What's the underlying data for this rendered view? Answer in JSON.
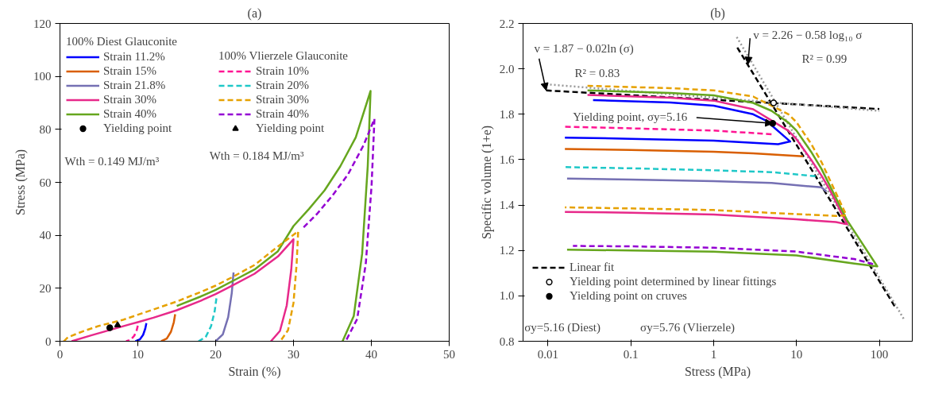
{
  "chart_data": [
    {
      "type": "line",
      "title": "(a)",
      "xlabel": "Strain (%)",
      "ylabel": "Stress (MPa)",
      "xlim": [
        0,
        50
      ],
      "ylim": [
        0,
        120
      ],
      "xticks": [
        0,
        10,
        20,
        30,
        40,
        50
      ],
      "yticks": [
        0,
        20,
        40,
        60,
        80,
        100,
        120
      ],
      "grid": false,
      "legend": "top left",
      "annotations": [
        "100% Diest Glauconite",
        "100% Vlierzele Glauconite",
        "Wth = 0.149 MJ/m³",
        "Wth = 0.184 MJ/m³"
      ],
      "series": [
        {
          "name": "Strain 11.2%",
          "color": "#0000ff",
          "line_style": "solid",
          "x": [
            11.1,
            10.96,
            10.68,
            10.26,
            9.7
          ],
          "values": [
            6.8,
            4.8,
            2.4,
            0.7,
            0
          ]
        },
        {
          "name": "Strain 15%",
          "color": "#d95f02",
          "line_style": "solid",
          "x": [
            14.8,
            14.62,
            14.26,
            13.72,
            13.0
          ],
          "values": [
            10.2,
            7.1,
            3.6,
            1.0,
            0
          ]
        },
        {
          "name": "Strain 21.8%",
          "color": "#7570b3",
          "line_style": "solid",
          "x": [
            22.3,
            22.07,
            21.61,
            20.92,
            20.0
          ],
          "values": [
            26.0,
            18.2,
            9.1,
            2.6,
            0
          ]
        },
        {
          "name": "Strain 30%",
          "color": "#e7298a",
          "line_style": "solid",
          "x": [
            1.5,
            4,
            9,
            10,
            12,
            15,
            18,
            20,
            22,
            25,
            28,
            30.0,
            29.71,
            29.13,
            28.26,
            27.1
          ],
          "values": [
            0,
            2.2,
            6.4,
            7.2,
            8.9,
            11.7,
            15.2,
            17.8,
            20.8,
            25.5,
            32,
            38.5,
            27.0,
            13.5,
            3.9,
            0
          ]
        },
        {
          "name": "Strain 40%",
          "color": "#66a61e",
          "line_style": "solid",
          "x": [
            15,
            18,
            20,
            23,
            25,
            28,
            30,
            32,
            34,
            36,
            38,
            39.9,
            39.54,
            38.82,
            37.74,
            36.3
          ],
          "values": [
            13.3,
            16.8,
            19.4,
            24.0,
            27.1,
            34,
            43.5,
            50,
            57,
            66,
            77,
            94.5,
            66.2,
            33.1,
            9.5,
            0
          ]
        },
        {
          "name": "Yielding point",
          "type": "scatter",
          "marker": "circle",
          "color": "#000000",
          "x": [
            6.4
          ],
          "values": [
            5.1
          ]
        },
        {
          "name": "Strain 10%",
          "color": "#ff1493",
          "line_style": "dashed",
          "x": [
            10.0,
            9.85,
            9.55,
            9.1,
            8.5
          ],
          "values": [
            5.9,
            4.1,
            2.1,
            0.6,
            0
          ]
        },
        {
          "name": "Strain 20%",
          "color": "#1fc8c8",
          "line_style": "dashed",
          "x": [
            20.1,
            19.87,
            19.41,
            18.72,
            17.8
          ],
          "values": [
            16.2,
            11.3,
            5.7,
            1.6,
            0
          ]
        },
        {
          "name": "Strain 30%",
          "color": "#e6a100",
          "line_style": "dashed",
          "x": [
            0.5,
            1,
            3,
            5,
            8,
            10,
            12,
            15,
            18,
            20,
            22,
            25,
            28,
            30.6,
            30.4,
            30.0,
            29.3,
            28.3
          ],
          "values": [
            0,
            1.5,
            3.8,
            5.8,
            8.0,
            10,
            12,
            15,
            18.5,
            21,
            24,
            28.8,
            35.8,
            41.5,
            29.1,
            14.5,
            4.2,
            0
          ]
        },
        {
          "name": "Strain 40%",
          "color": "#9400d3",
          "line_style": "dashed",
          "x": [
            31.3,
            33,
            35,
            37,
            39,
            40.4,
            40.03,
            39.29,
            38.18,
            36.7
          ],
          "values": [
            43.0,
            48,
            55,
            63,
            74,
            84,
            58.8,
            29.4,
            8.4,
            0
          ]
        },
        {
          "name": "Yielding point",
          "type": "scatter",
          "marker": "triangle",
          "color": "#000000",
          "x": [
            7.4
          ],
          "values": [
            6.1
          ]
        }
      ]
    },
    {
      "type": "line",
      "title": "(b)",
      "xlabel": "Stress (MPa)",
      "ylabel": "Specific volume (1+e)",
      "log": "x",
      "xlim": [
        0.005,
        250
      ],
      "ylim": [
        0.8,
        2.2
      ],
      "xticks": [
        0.01,
        0.1,
        1,
        10,
        100
      ],
      "yticks": [
        0.8,
        {
          "value": 1,
          "label": "1.0"
        },
        1.2,
        1.4,
        1.6,
        1.8,
        {
          "value": 2,
          "label": "2.0"
        },
        2.2
      ],
      "grid": false,
      "legend": "bottom left",
      "annotations": [
        {
          "text": "v = 1.87 − 0.02ln (σ)",
          "x": 0.0095,
          "y": 1.905
        },
        "R² = 0.83",
        {
          "text": "v = 2.26 − 0.58 log₁₀ σ",
          "x": 2.6,
          "y": 2.02
        },
        "R² = 0.99",
        {
          "text": "Yielding point, σy=5.16",
          "x": 5.16,
          "y": 1.76
        },
        "σy=5.16 (Diest)",
        "σy=5.76 (Vlierzele)"
      ],
      "series": [
        {
          "name": "Linear fit",
          "color": "#000000",
          "line_style": "dashed",
          "x": [
            0.0095,
            100,
            null,
            1.93,
            154
          ],
          "values": [
            1.905,
            1.823,
            null,
            2.094,
            0.953
          ]
        },
        {
          "color": "#999999",
          "line_style": "dotted",
          "x": [
            0.0095,
            100,
            null,
            1.9,
            200
          ],
          "values": [
            1.932,
            1.815,
            null,
            2.14,
            0.895
          ]
        },
        {
          "color": "#0000ff",
          "line_style": "solid",
          "x": [
            0.035,
            0.3,
            1,
            3,
            4.3,
            8.4,
            6,
            1,
            0.1,
            0.016
          ],
          "values": [
            1.862,
            1.852,
            1.838,
            1.8,
            1.772,
            1.68,
            1.668,
            1.684,
            1.692,
            1.697
          ]
        },
        {
          "color": "#d95f02",
          "line_style": "solid",
          "x": [
            12,
            3,
            1,
            0.1,
            0.016
          ],
          "values": [
            1.615,
            1.628,
            1.635,
            1.643,
            1.647
          ]
        },
        {
          "color": "#7570b3",
          "line_style": "solid",
          "x": [
            23,
            20,
            5,
            1,
            0.1,
            0.017
          ],
          "values": [
            1.46,
            1.478,
            1.497,
            1.505,
            1.512,
            1.517
          ]
        },
        {
          "color": "#e7298a",
          "line_style": "solid",
          "x": [
            0.03,
            0.3,
            1,
            3,
            8,
            10,
            15,
            20,
            25,
            41,
            30,
            10,
            1,
            0.1,
            0.016
          ],
          "values": [
            1.885,
            1.873,
            1.86,
            1.822,
            1.727,
            1.69,
            1.6,
            1.53,
            1.47,
            1.315,
            1.325,
            1.337,
            1.358,
            1.366,
            1.37
          ]
        },
        {
          "color": "#66a61e",
          "line_style": "solid",
          "x": [
            0.03,
            0.3,
            1,
            3,
            5,
            8,
            10,
            15,
            20,
            40.5,
            94.5,
            50,
            10,
            1,
            0.1,
            0.017
          ],
          "values": [
            1.905,
            1.894,
            1.883,
            1.85,
            1.815,
            1.763,
            1.728,
            1.635,
            1.56,
            1.335,
            1.13,
            1.142,
            1.178,
            1.195,
            1.2,
            1.203
          ]
        },
        {
          "color": "#ff1493",
          "line_style": "dashed",
          "x": [
            5,
            1,
            0.1,
            0.016
          ],
          "values": [
            1.712,
            1.728,
            1.738,
            1.745
          ]
        },
        {
          "color": "#1fc8c8",
          "line_style": "dashed",
          "x": [
            17,
            5,
            1,
            0.1,
            0.016
          ],
          "values": [
            1.527,
            1.545,
            1.553,
            1.562,
            1.567
          ]
        },
        {
          "color": "#e6a100",
          "line_style": "dashed",
          "x": [
            0.03,
            0.3,
            1,
            3,
            8,
            10,
            15,
            20,
            40,
            30,
            10,
            1,
            0.1,
            0.016
          ],
          "values": [
            1.925,
            1.915,
            1.905,
            1.878,
            1.8,
            1.765,
            1.67,
            1.59,
            1.355,
            1.352,
            1.36,
            1.378,
            1.385,
            1.39
          ]
        },
        {
          "color": "#9400d3",
          "line_style": "dashed",
          "x": [
            84,
            50,
            10,
            1,
            0.1,
            0.02
          ],
          "values": [
            1.14,
            1.162,
            1.195,
            1.212,
            1.218,
            1.22
          ]
        },
        {
          "name": "Yielding point determined by linear fittings",
          "type": "scatter",
          "marker": "circle",
          "color": "#ffffff",
          "x": [
            5.3
          ],
          "values": [
            1.85
          ]
        },
        {
          "name": "Yielding point on cruves",
          "type": "scatter",
          "marker": "circle",
          "color": "#000000",
          "x": [
            5.16
          ],
          "values": [
            1.76
          ]
        }
      ]
    }
  ]
}
